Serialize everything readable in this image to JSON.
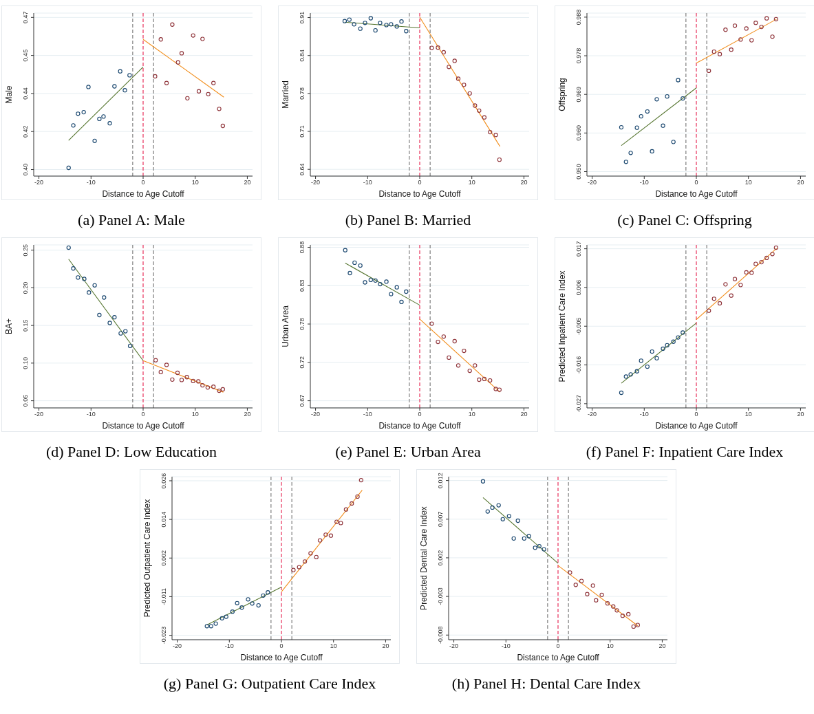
{
  "chart_data": [
    {
      "type": "scatter",
      "title": "(a)  Panel A: Male",
      "xlabel": "Distance to Age Cutoff",
      "ylabel": "Male",
      "xlim": [
        -21,
        21
      ],
      "xticks": [
        -20,
        -10,
        0,
        10,
        20
      ],
      "ylim": [
        0.397,
        0.472
      ],
      "yticks": [
        {
          "value": 0.4,
          "label": "0.40"
        },
        {
          "value": 0.4175,
          "label": "0.42"
        },
        {
          "value": 0.435,
          "label": "0.44"
        },
        {
          "value": 0.4525,
          "label": "0.45"
        },
        {
          "value": 0.47,
          "label": "0.47"
        }
      ],
      "grid": "y",
      "marker": "circle",
      "ref_lines": [
        {
          "axis": "x",
          "value": -2,
          "color": "#7f7f7f",
          "line_style": "dashed"
        },
        {
          "axis": "x",
          "value": 0,
          "color": "#e8305a",
          "line_style": "dashed"
        },
        {
          "axis": "x",
          "value": 2,
          "color": "#7f7f7f",
          "line_style": "dashed"
        }
      ],
      "series": [
        {
          "type": "scatter",
          "color": "#1a476f",
          "x": [
            -14.3,
            -13.4,
            -12.5,
            -11.4,
            -10.5,
            -9.3,
            -8.4,
            -7.6,
            -6.4,
            -5.5,
            -4.4,
            -3.5,
            -2.6
          ],
          "values": [
            0.4008,
            0.4203,
            0.4257,
            0.4264,
            0.438,
            0.4132,
            0.4233,
            0.4244,
            0.4213,
            0.4383,
            0.4452,
            0.4365,
            0.4434
          ]
        },
        {
          "type": "scatter",
          "color": "#90353b",
          "x": [
            2.3,
            3.4,
            4.5,
            5.6,
            6.7,
            7.4,
            8.5,
            9.6,
            10.7,
            11.4,
            12.5,
            13.5,
            14.6,
            15.3
          ],
          "values": [
            0.4429,
            0.4599,
            0.4398,
            0.4667,
            0.4493,
            0.4535,
            0.4328,
            0.4617,
            0.436,
            0.4601,
            0.4347,
            0.4398,
            0.4279,
            0.4201
          ]
        },
        {
          "type": "line",
          "marker": "none",
          "color": "#55752f",
          "x": [
            -14.3,
            0
          ],
          "values": [
            0.4134,
            0.4472
          ]
        },
        {
          "type": "line",
          "marker": "none",
          "color": "#f28e1c",
          "x": [
            0,
            15.5
          ],
          "values": [
            0.4599,
            0.4333
          ]
        }
      ]
    },
    {
      "type": "scatter",
      "title": "(b)  Panel B: Married",
      "xlabel": "Distance to Age Cutoff",
      "ylabel": "Married",
      "xlim": [
        -21,
        21
      ],
      "xticks": [
        -20,
        -10,
        0,
        10,
        20
      ],
      "ylim": [
        0.628,
        0.918
      ],
      "yticks": [
        {
          "value": 0.64,
          "label": "0.64"
        },
        {
          "value": 0.7075,
          "label": "0.71"
        },
        {
          "value": 0.775,
          "label": "0.78"
        },
        {
          "value": 0.8425,
          "label": "0.84"
        },
        {
          "value": 0.91,
          "label": "0.91"
        }
      ],
      "grid": "y",
      "marker": "circle",
      "ref_lines": [
        {
          "axis": "x",
          "value": -2,
          "color": "#7f7f7f",
          "line_style": "dashed"
        },
        {
          "axis": "x",
          "value": 0,
          "color": "#e8305a",
          "line_style": "dashed"
        },
        {
          "axis": "x",
          "value": 2,
          "color": "#7f7f7f",
          "line_style": "dashed"
        }
      ],
      "series": [
        {
          "type": "scatter",
          "color": "#1a476f",
          "x": [
            -14.4,
            -13.5,
            -12.6,
            -11.4,
            -10.5,
            -9.4,
            -8.5,
            -7.6,
            -6.4,
            -5.5,
            -4.4,
            -3.5,
            -2.6
          ],
          "values": [
            0.9037,
            0.9063,
            0.898,
            0.8903,
            0.9005,
            0.9088,
            0.8872,
            0.9005,
            0.8967,
            0.898,
            0.8942,
            0.9031,
            0.8859
          ]
        },
        {
          "type": "scatter",
          "color": "#90353b",
          "x": [
            2.3,
            3.5,
            4.6,
            5.6,
            6.7,
            7.4,
            8.5,
            9.6,
            10.6,
            11.4,
            12.4,
            13.5,
            14.6,
            15.3
          ],
          "values": [
            0.856,
            0.8566,
            0.8483,
            0.8222,
            0.833,
            0.8012,
            0.7903,
            0.775,
            0.7534,
            0.7445,
            0.7324,
            0.7062,
            0.7012,
            0.6572
          ]
        },
        {
          "type": "line",
          "marker": "none",
          "color": "#55752f",
          "x": [
            -14.4,
            0
          ],
          "values": [
            0.9018,
            0.8916
          ]
        },
        {
          "type": "line",
          "marker": "none",
          "color": "#f28e1c",
          "x": [
            0,
            15.4
          ],
          "values": [
            0.9107,
            0.6808
          ]
        }
      ]
    },
    {
      "type": "scatter",
      "title": "(c)  Panel C: Offspring",
      "xlabel": "Distance to Age Cutoff",
      "ylabel": "Offspring",
      "xlim": [
        -21,
        21
      ],
      "xticks": [
        -20,
        -10,
        0,
        10,
        20
      ],
      "ylim": [
        0.9489,
        0.989
      ],
      "yticks": [
        {
          "value": 0.95,
          "label": "0.950"
        },
        {
          "value": 0.9595,
          "label": "0.960"
        },
        {
          "value": 0.969,
          "label": "0.969"
        },
        {
          "value": 0.9785,
          "label": "0.978"
        },
        {
          "value": 0.988,
          "label": "0.988"
        }
      ],
      "grid": "y",
      "marker": "circle",
      "ref_lines": [
        {
          "axis": "x",
          "value": -2,
          "color": "#7f7f7f",
          "line_style": "dashed"
        },
        {
          "axis": "x",
          "value": 0,
          "color": "#e8305a",
          "line_style": "dashed"
        },
        {
          "axis": "x",
          "value": 2,
          "color": "#7f7f7f",
          "line_style": "dashed"
        }
      ],
      "series": [
        {
          "type": "scatter",
          "color": "#1a476f",
          "x": [
            -14.4,
            -13.5,
            -12.6,
            -11.4,
            -10.6,
            -9.4,
            -8.5,
            -7.6,
            -6.4,
            -5.6,
            -4.4,
            -3.5,
            -2.6
          ],
          "values": [
            0.9609,
            0.9524,
            0.9546,
            0.9608,
            0.9636,
            0.9648,
            0.955,
            0.9678,
            0.9613,
            0.9685,
            0.9573,
            0.9725,
            0.968
          ]
        },
        {
          "type": "scatter",
          "color": "#90353b",
          "x": [
            2.4,
            3.4,
            4.5,
            5.6,
            6.7,
            7.4,
            8.5,
            9.6,
            10.6,
            11.4,
            12.5,
            13.5,
            14.6,
            15.3
          ],
          "values": [
            0.9748,
            0.9795,
            0.9789,
            0.9849,
            0.98,
            0.9859,
            0.9825,
            0.9852,
            0.9823,
            0.9866,
            0.9856,
            0.9877,
            0.9832,
            0.9875
          ]
        },
        {
          "type": "line",
          "marker": "none",
          "color": "#55752f",
          "x": [
            -14.4,
            0
          ],
          "values": [
            0.9564,
            0.9706
          ]
        },
        {
          "type": "line",
          "marker": "none",
          "color": "#f28e1c",
          "x": [
            0,
            15.4
          ],
          "values": [
            0.9767,
            0.9875
          ]
        }
      ]
    },
    {
      "type": "scatter",
      "title": "(d)  Panel D: Low Education",
      "xlabel": "Distance to Age Cutoff",
      "ylabel": "BA+",
      "xlim": [
        -21,
        21
      ],
      "xticks": [
        -20,
        -10,
        0,
        10,
        20
      ],
      "ylim": [
        0.0405,
        0.257
      ],
      "yticks": [
        {
          "value": 0.05,
          "label": "0.05"
        },
        {
          "value": 0.1,
          "label": "0.10"
        },
        {
          "value": 0.15,
          "label": "0.15"
        },
        {
          "value": 0.2,
          "label": "0.20"
        },
        {
          "value": 0.25,
          "label": "0.25"
        }
      ],
      "grid": "y",
      "marker": "circle",
      "ref_lines": [
        {
          "axis": "x",
          "value": -2,
          "color": "#7f7f7f",
          "line_style": "dashed"
        },
        {
          "axis": "x",
          "value": 0,
          "color": "#e8305a",
          "line_style": "dashed"
        },
        {
          "axis": "x",
          "value": 2,
          "color": "#7f7f7f",
          "line_style": "dashed"
        }
      ],
      "series": [
        {
          "type": "scatter",
          "color": "#1a476f",
          "x": [
            -14.3,
            -13.4,
            -12.5,
            -11.3,
            -10.4,
            -9.3,
            -8.4,
            -7.5,
            -6.4,
            -5.5,
            -4.3,
            -3.4,
            -2.5
          ],
          "values": [
            0.2533,
            0.2257,
            0.2137,
            0.2118,
            0.1938,
            0.2033,
            0.1638,
            0.1871,
            0.1533,
            0.1609,
            0.1395,
            0.1423,
            0.1228
          ]
        },
        {
          "type": "scatter",
          "color": "#90353b",
          "x": [
            2.4,
            3.4,
            4.5,
            5.6,
            6.6,
            7.4,
            8.4,
            9.6,
            10.6,
            11.4,
            12.4,
            13.5,
            14.6,
            15.3
          ],
          "values": [
            0.1038,
            0.0881,
            0.0976,
            0.0781,
            0.0871,
            0.0776,
            0.0814,
            0.0762,
            0.0757,
            0.0705,
            0.0676,
            0.0686,
            0.0633,
            0.0652
          ]
        },
        {
          "type": "line",
          "marker": "none",
          "color": "#55752f",
          "x": [
            -14.3,
            0
          ],
          "values": [
            0.238,
            0.1033
          ]
        },
        {
          "type": "line",
          "marker": "none",
          "color": "#f28e1c",
          "x": [
            0,
            15.4
          ],
          "values": [
            0.1033,
            0.0614
          ]
        }
      ]
    },
    {
      "type": "scatter",
      "title": "(e)  Panel E: Urban Area",
      "xlabel": "Distance to Age Cutoff",
      "ylabel": "Urban Area",
      "xlim": [
        -21,
        21
      ],
      "xticks": [
        -20,
        -10,
        0,
        10,
        20
      ],
      "ylim": [
        0.6602,
        0.8833
      ],
      "yticks": [
        {
          "value": 0.67,
          "label": "0.67"
        },
        {
          "value": 0.7225,
          "label": "0.72"
        },
        {
          "value": 0.775,
          "label": "0.78"
        },
        {
          "value": 0.8275,
          "label": "0.83"
        },
        {
          "value": 0.88,
          "label": "0.88"
        }
      ],
      "grid": "y",
      "marker": "circle",
      "ref_lines": [
        {
          "axis": "x",
          "value": -2,
          "color": "#7f7f7f",
          "line_style": "dashed"
        },
        {
          "axis": "x",
          "value": 0,
          "color": "#e8305a",
          "line_style": "dashed"
        },
        {
          "axis": "x",
          "value": 2,
          "color": "#7f7f7f",
          "line_style": "dashed"
        }
      ],
      "series": [
        {
          "type": "scatter",
          "color": "#1a476f",
          "x": [
            -14.3,
            -13.4,
            -12.5,
            -11.4,
            -10.5,
            -9.4,
            -8.5,
            -7.6,
            -6.4,
            -5.5,
            -4.4,
            -3.5,
            -2.6
          ],
          "values": [
            0.876,
            0.8447,
            0.8589,
            0.855,
            0.832,
            0.8354,
            0.8345,
            0.8296,
            0.833,
            0.8159,
            0.8252,
            0.8052,
            0.8193
          ]
        },
        {
          "type": "scatter",
          "color": "#90353b",
          "x": [
            2.3,
            3.5,
            4.6,
            5.6,
            6.7,
            7.4,
            8.5,
            9.6,
            10.6,
            11.4,
            12.4,
            13.5,
            14.6,
            15.3
          ],
          "values": [
            0.7754,
            0.7505,
            0.7578,
            0.729,
            0.7515,
            0.7183,
            0.7383,
            0.711,
            0.7183,
            0.6988,
            0.6998,
            0.6978,
            0.6861,
            0.6851
          ]
        },
        {
          "type": "line",
          "marker": "none",
          "color": "#55752f",
          "x": [
            -14.3,
            0
          ],
          "values": [
            0.8584,
            0.8008
          ]
        },
        {
          "type": "line",
          "marker": "none",
          "color": "#f28e1c",
          "x": [
            0,
            15.4
          ],
          "values": [
            0.7818,
            0.6817
          ]
        }
      ]
    },
    {
      "type": "scatter",
      "title": "(f)  Panel F: Inpatient Care Index",
      "xlabel": "Distance to Age Cutoff",
      "ylabel": "Predicted Inpatient Care Index",
      "xlim": [
        -21,
        21
      ],
      "xticks": [
        -20,
        -10,
        0,
        10,
        20
      ],
      "ylim": [
        -0.0282,
        0.0181
      ],
      "yticks": [
        {
          "value": -0.027,
          "label": "-0.027"
        },
        {
          "value": -0.016,
          "label": "-0.016"
        },
        {
          "value": -0.005,
          "label": "-0.005"
        },
        {
          "value": 0.006,
          "label": "0.006"
        },
        {
          "value": 0.017,
          "label": "0.017"
        }
      ],
      "grid": "y",
      "marker": "circle",
      "ref_lines": [
        {
          "axis": "x",
          "value": -2,
          "color": "#7f7f7f",
          "line_style": "dashed"
        },
        {
          "axis": "x",
          "value": 0,
          "color": "#e8305a",
          "line_style": "dashed"
        },
        {
          "axis": "x",
          "value": 2,
          "color": "#7f7f7f",
          "line_style": "dashed"
        }
      ],
      "series": [
        {
          "type": "scatter",
          "color": "#1a476f",
          "x": [
            -14.4,
            -13.5,
            -12.6,
            -11.4,
            -10.6,
            -9.4,
            -8.5,
            -7.6,
            -6.4,
            -5.6,
            -4.4,
            -3.5,
            -2.6
          ],
          "values": [
            -0.0239,
            -0.0193,
            -0.0187,
            -0.0178,
            -0.0148,
            -0.0165,
            -0.0122,
            -0.0141,
            -0.0114,
            -0.0104,
            -0.0094,
            -0.0082,
            -0.0068
          ]
        },
        {
          "type": "scatter",
          "color": "#90353b",
          "x": [
            2.4,
            3.4,
            4.5,
            5.6,
            6.7,
            7.4,
            8.5,
            9.6,
            10.6,
            11.4,
            12.5,
            13.5,
            14.6,
            15.3
          ],
          "values": [
            -0.0006,
            0.0028,
            0.0015,
            0.0069,
            0.0037,
            0.0084,
            0.0067,
            0.0103,
            0.0102,
            0.0127,
            0.0132,
            0.0144,
            0.0155,
            0.0173
          ]
        },
        {
          "type": "line",
          "marker": "none",
          "color": "#55752f",
          "x": [
            -14.4,
            0
          ],
          "values": [
            -0.0212,
            -0.0041
          ]
        },
        {
          "type": "line",
          "marker": "none",
          "color": "#f28e1c",
          "x": [
            0,
            15.4
          ],
          "values": [
            -0.0031,
            0.0171
          ]
        }
      ]
    },
    {
      "type": "scatter",
      "title": "(g)  Panel G: Outpatient Care Index",
      "xlabel": "Distance to Age Cutoff",
      "ylabel": "Predicted Outpatient Care Index",
      "xlim": [
        -21,
        21
      ],
      "xticks": [
        -20,
        -10,
        0,
        10,
        20
      ],
      "ylim": [
        -0.0244,
        0.0273
      ],
      "yticks": [
        {
          "value": -0.023,
          "label": "-0.023"
        },
        {
          "value": -0.01075,
          "label": "-0.011"
        },
        {
          "value": 0.0015,
          "label": "0.002"
        },
        {
          "value": 0.01375,
          "label": "0.014"
        },
        {
          "value": 0.026,
          "label": "0.026"
        }
      ],
      "grid": "y",
      "marker": "circle",
      "ref_lines": [
        {
          "axis": "x",
          "value": -2,
          "color": "#7f7f7f",
          "line_style": "dashed"
        },
        {
          "axis": "x",
          "value": 0,
          "color": "#e8305a",
          "line_style": "dashed"
        },
        {
          "axis": "x",
          "value": 2,
          "color": "#7f7f7f",
          "line_style": "dashed"
        }
      ],
      "series": [
        {
          "type": "scatter",
          "color": "#1a476f",
          "x": [
            -14.3,
            -13.5,
            -12.6,
            -11.4,
            -10.6,
            -9.4,
            -8.5,
            -7.6,
            -6.4,
            -5.6,
            -4.4,
            -3.5,
            -2.6
          ],
          "values": [
            -0.0201,
            -0.0201,
            -0.0193,
            -0.0176,
            -0.0171,
            -0.0155,
            -0.0128,
            -0.0142,
            -0.0116,
            -0.0129,
            -0.0135,
            -0.0104,
            -0.0094
          ]
        },
        {
          "type": "scatter",
          "color": "#90353b",
          "x": [
            2.3,
            3.4,
            4.5,
            5.6,
            6.7,
            7.4,
            8.5,
            9.5,
            10.6,
            11.4,
            12.4,
            13.5,
            14.6,
            15.3
          ],
          "values": [
            -0.0023,
            -0.0014,
            0.0004,
            0.003,
            0.0018,
            0.0071,
            0.0089,
            0.0086,
            0.013,
            0.0126,
            0.0169,
            0.0188,
            0.021,
            0.0262
          ]
        },
        {
          "type": "line",
          "marker": "none",
          "color": "#55752f",
          "x": [
            -14.3,
            0
          ],
          "values": [
            -0.0197,
            -0.0077
          ]
        },
        {
          "type": "line",
          "marker": "none",
          "color": "#f28e1c",
          "x": [
            0,
            15.5
          ],
          "values": [
            -0.0092,
            0.023
          ]
        }
      ]
    },
    {
      "type": "scatter",
      "title": "(h)  Panel H: Dental Care Index",
      "xlabel": "Distance to Age Cutoff",
      "ylabel": "Predicted Dental Care Index",
      "xlim": [
        -21,
        21
      ],
      "xticks": [
        -20,
        -10,
        0,
        10,
        20
      ],
      "ylim": [
        -0.0086,
        0.0125
      ],
      "yticks": [
        {
          "value": -0.008,
          "label": "-0.008"
        },
        {
          "value": -0.003,
          "label": "-0.003"
        },
        {
          "value": 0.002,
          "label": "0.002"
        },
        {
          "value": 0.007,
          "label": "0.007"
        },
        {
          "value": 0.012,
          "label": "0.012"
        }
      ],
      "grid": "y",
      "marker": "circle",
      "ref_lines": [
        {
          "axis": "x",
          "value": -2,
          "color": "#7f7f7f",
          "line_style": "dashed"
        },
        {
          "axis": "x",
          "value": 0,
          "color": "#e8305a",
          "line_style": "dashed"
        },
        {
          "axis": "x",
          "value": 2,
          "color": "#7f7f7f",
          "line_style": "dashed"
        }
      ],
      "series": [
        {
          "type": "scatter",
          "color": "#1a476f",
          "x": [
            -14.4,
            -13.5,
            -12.6,
            -11.4,
            -10.6,
            -9.4,
            -8.5,
            -7.7,
            -6.5,
            -5.6,
            -4.4,
            -3.6,
            -2.7
          ],
          "values": [
            0.0119,
            0.008,
            0.0085,
            0.0088,
            0.007,
            0.0074,
            0.0045,
            0.0068,
            0.0045,
            0.0048,
            0.0033,
            0.0035,
            0.0031
          ]
        },
        {
          "type": "scatter",
          "color": "#90353b",
          "x": [
            2.3,
            3.4,
            4.5,
            5.6,
            6.7,
            7.3,
            8.4,
            9.5,
            10.6,
            11.3,
            12.4,
            13.5,
            14.5,
            15.3
          ],
          "values": [
            0.0001,
            -0.0015,
            -0.001,
            -0.0027,
            -0.0016,
            -0.0035,
            -0.0028,
            -0.0039,
            -0.0043,
            -0.0048,
            -0.0055,
            -0.0053,
            -0.0069,
            -0.0067
          ]
        },
        {
          "type": "line",
          "marker": "none",
          "color": "#55752f",
          "x": [
            -14.4,
            0
          ],
          "values": [
            0.0098,
            0.0013
          ]
        },
        {
          "type": "line",
          "marker": "none",
          "color": "#f28e1c",
          "x": [
            0,
            15.3
          ],
          "values": [
            0.001,
            -0.0068
          ]
        }
      ]
    }
  ]
}
